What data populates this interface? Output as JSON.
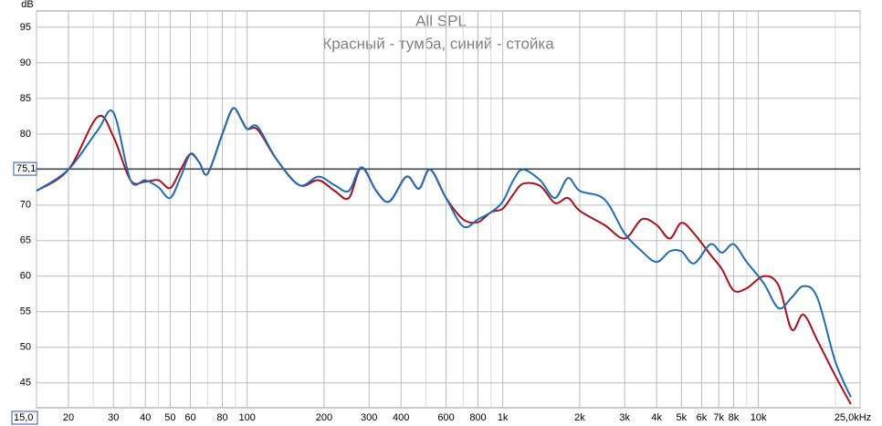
{
  "chart_data": {
    "type": "line",
    "title": "All SPL",
    "subtitle": "Красный - тумба, синий - стойка",
    "y_unit": "dB",
    "log_x": true,
    "grid": true,
    "x": [
      15,
      20,
      26,
      30,
      35,
      40,
      45,
      50,
      55,
      60,
      65,
      70,
      80,
      88,
      95,
      100,
      110,
      130,
      160,
      190,
      220,
      250,
      280,
      320,
      360,
      420,
      470,
      520,
      600,
      700,
      800,
      900,
      1000,
      1100,
      1200,
      1400,
      1600,
      1800,
      2000,
      2500,
      3000,
      3500,
      4000,
      4500,
      5000,
      5600,
      6500,
      7200,
      8000,
      9000,
      10500,
      12000,
      13500,
      15000,
      17000,
      20000,
      23000
    ],
    "series": [
      {
        "color": "#a8101c",
        "values": [
          72,
          75,
          82.4,
          79.6,
          73.5,
          73.3,
          73.5,
          72.4,
          75,
          77.2,
          76,
          74.4,
          80,
          83.6,
          82,
          80.7,
          80.6,
          76.5,
          72.8,
          73.5,
          72,
          71,
          75.3,
          72,
          70.5,
          74,
          72.3,
          75,
          71,
          68,
          67.6,
          69,
          69.5,
          71.5,
          73,
          72.7,
          70.3,
          71,
          69.2,
          67.2,
          65.3,
          68,
          67.2,
          65.3,
          67.5,
          66,
          63,
          61,
          58,
          58.3,
          60,
          58.7,
          52.5,
          54.6,
          51,
          46,
          42
        ]
      },
      {
        "color": "#1f6db5",
        "values": [
          72,
          75,
          80.5,
          83,
          73.5,
          73.5,
          72.5,
          71,
          74,
          77.2,
          76,
          74.4,
          80,
          83.6,
          82,
          80.7,
          81,
          76.5,
          72.8,
          74,
          72.8,
          72,
          75.3,
          72,
          70.5,
          74,
          72.3,
          75,
          71,
          67,
          68,
          69,
          70.5,
          73.5,
          75,
          73.5,
          71,
          73.8,
          72,
          70.8,
          66,
          63.5,
          62,
          63.5,
          63.5,
          61.8,
          64.5,
          63.3,
          64.5,
          62,
          59,
          55.5,
          57,
          58.6,
          57,
          48,
          43
        ]
      }
    ],
    "xlim": [
      15,
      25000
    ],
    "ylim": [
      41.5,
      97.3
    ],
    "xticks": [
      {
        "value": 15,
        "label": "15,0"
      },
      20,
      30,
      40,
      50,
      60,
      80,
      100,
      200,
      300,
      400,
      600,
      800,
      {
        "value": 1000,
        "label": "1k"
      },
      {
        "value": 2000,
        "label": "2k"
      },
      {
        "value": 3000,
        "label": "3k"
      },
      {
        "value": 4000,
        "label": "4k"
      },
      {
        "value": 5000,
        "label": "5k"
      },
      {
        "value": 6000,
        "label": "6k"
      },
      {
        "value": 7000,
        "label": "7k"
      },
      {
        "value": 8000,
        "label": "8k"
      },
      {
        "value": 10000,
        "label": "10k"
      },
      {
        "value": 25000,
        "label": "25,0kHz"
      }
    ],
    "minor_xticks": [
      25,
      35,
      45,
      70,
      90,
      500,
      700,
      900,
      9000,
      20000
    ],
    "yticks": [
      45,
      50,
      55,
      60,
      65,
      70,
      75,
      80,
      85,
      90,
      95
    ],
    "reference_line": {
      "value": 75.1,
      "label": "75,1"
    }
  }
}
